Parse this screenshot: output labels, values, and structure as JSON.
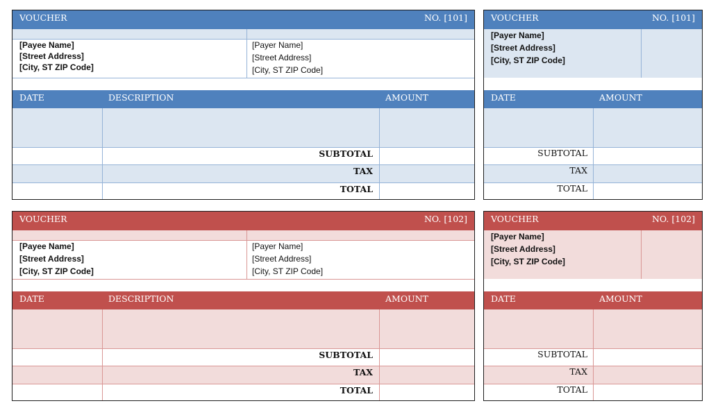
{
  "theme_colors": {
    "blue_dark": "#4f81bd",
    "blue_light": "#dce6f1",
    "red_dark": "#c0504d",
    "red_light": "#f2dcdb"
  },
  "vouchers": [
    {
      "title": "VOUCHER",
      "number": "NO. [101]",
      "payee": {
        "name": "[Payee Name]",
        "street": "[Street Address]",
        "city": "[City, ST  ZIP Code]"
      },
      "payer": {
        "name": "[Payer Name]",
        "street": "[Street Address]",
        "city": "[City, ST  ZIP Code]"
      },
      "columns": {
        "date": "DATE",
        "description": "DESCRIPTION",
        "amount": "AMOUNT"
      },
      "totals": {
        "subtotal": "SUBTOTAL",
        "tax": "TAX",
        "total": "TOTAL"
      },
      "stub": {
        "title": "VOUCHER",
        "number": "NO. [101]",
        "payer": {
          "name": "[Payer Name]",
          "street": "[Street Address]",
          "city": "[City, ST  ZIP Code]"
        },
        "columns": {
          "date": "DATE",
          "amount": "AMOUNT"
        },
        "totals": {
          "subtotal": "SUBTOTAL",
          "tax": "TAX",
          "total": "TOTAL"
        }
      }
    },
    {
      "title": "VOUCHER",
      "number": "NO. [102]",
      "payee": {
        "name": "[Payee Name]",
        "street": "[Street Address]",
        "city": "[City, ST  ZIP Code]"
      },
      "payer": {
        "name": "[Payer Name]",
        "street": "[Street Address]",
        "city": "[City, ST  ZIP Code]"
      },
      "columns": {
        "date": "DATE",
        "description": "DESCRIPTION",
        "amount": "AMOUNT"
      },
      "totals": {
        "subtotal": "SUBTOTAL",
        "tax": "TAX",
        "total": "TOTAL"
      },
      "stub": {
        "title": "VOUCHER",
        "number": "NO. [102]",
        "payer": {
          "name": "[Payer Name]",
          "street": "[Street Address]",
          "city": "[City, ST  ZIP Code]"
        },
        "columns": {
          "date": "DATE",
          "amount": "AMOUNT"
        },
        "totals": {
          "subtotal": "SUBTOTAL",
          "tax": "TAX",
          "total": "TOTAL"
        }
      }
    }
  ]
}
